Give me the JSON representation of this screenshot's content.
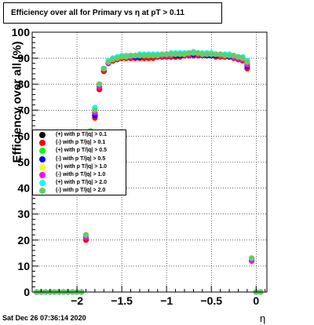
{
  "title": "Efficiency over all for Primary vs   η at pT > 0.11",
  "timestamp": "Sat Dec 26 07:36:14 2020",
  "chart_data": {
    "type": "scatter",
    "title": "Efficiency over all for Primary vs   η at pT > 0.11",
    "xlabel": "η",
    "ylabel": "Efficiency over all (%)",
    "xlim": [
      -2.5,
      0.12
    ],
    "ylim": [
      0,
      100
    ],
    "x_ticks": [
      -2,
      -1.5,
      -1,
      -0.5,
      0
    ],
    "x_tick_labels": [
      "−2",
      "−1.5",
      "−1",
      "−0.5",
      "0"
    ],
    "y_ticks": [
      0,
      10,
      20,
      30,
      40,
      50,
      60,
      70,
      80,
      90,
      100
    ],
    "y_tick_labels": [
      "0",
      "10",
      "20",
      "30",
      "40",
      "50",
      "60",
      "70",
      "80",
      "90",
      "100"
    ],
    "grid": true,
    "legend_position": "left-middle",
    "x": [
      -2.45,
      -2.4,
      -2.35,
      -2.3,
      -2.25,
      -2.2,
      -2.15,
      -2.1,
      -2.05,
      -2.0,
      -1.95,
      -1.9,
      -1.85,
      -1.8,
      -1.75,
      -1.7,
      -1.65,
      -1.6,
      -1.55,
      -1.5,
      -1.45,
      -1.4,
      -1.35,
      -1.3,
      -1.25,
      -1.2,
      -1.15,
      -1.1,
      -1.05,
      -1.0,
      -0.95,
      -0.9,
      -0.85,
      -0.8,
      -0.75,
      -0.7,
      -0.65,
      -0.6,
      -0.55,
      -0.5,
      -0.45,
      -0.4,
      -0.35,
      -0.3,
      -0.25,
      -0.2,
      -0.15,
      -0.1,
      -0.05,
      0.0,
      0.05
    ],
    "series": [
      {
        "name": "(+) with p T/|q| > 0.1",
        "color": "#000000",
        "values": [
          0,
          0,
          0,
          0,
          0,
          0,
          0,
          0,
          0,
          0,
          0,
          21,
          62,
          68,
          78,
          85,
          88,
          89,
          89.5,
          90,
          90,
          90,
          90,
          90,
          90,
          90,
          90.5,
          90.5,
          90.5,
          90.5,
          90.5,
          90.5,
          91,
          91,
          91,
          91,
          91,
          91,
          91,
          91,
          91,
          91,
          90.5,
          90.5,
          90.5,
          90,
          89.5,
          88,
          13,
          0,
          0
        ]
      },
      {
        "name": "(-) with p T/|q| > 0.1",
        "color": "#ff0000",
        "values": [
          0,
          0,
          0,
          0,
          0,
          0,
          0,
          0,
          0,
          0,
          0,
          20,
          61,
          67,
          78,
          85,
          88,
          89,
          89.5,
          90,
          90,
          90,
          90,
          90,
          90,
          90,
          90,
          90.5,
          90.5,
          90.5,
          90.5,
          90.5,
          90.5,
          91,
          91,
          91,
          91,
          91,
          91,
          91,
          90.5,
          90.5,
          90.5,
          90.5,
          90,
          89.5,
          89,
          86,
          12,
          0,
          0
        ]
      },
      {
        "name": "(+) with p T/|q| > 0.5",
        "color": "#00ff00",
        "values": [
          0,
          0,
          0,
          0,
          0,
          0,
          0,
          0,
          0,
          0,
          0,
          21,
          62,
          69,
          79,
          86,
          88,
          89.5,
          90,
          90.5,
          90.5,
          90.5,
          90.5,
          91,
          91,
          91,
          91,
          91,
          91,
          91,
          91,
          91,
          91.5,
          91.5,
          91.5,
          91.5,
          91.5,
          91.5,
          91.5,
          91.5,
          91.5,
          91,
          91,
          91,
          90.5,
          90.5,
          90,
          88,
          13,
          0,
          0
        ]
      },
      {
        "name": "(-) with p T/|q| > 0.5",
        "color": "#0000ff",
        "values": [
          0,
          0,
          0,
          0,
          0,
          0,
          0,
          0,
          0,
          0,
          0,
          21,
          61,
          68,
          79,
          86,
          88,
          89.5,
          90,
          90.5,
          90.5,
          90.5,
          90.5,
          90.5,
          91,
          91,
          91,
          91,
          91,
          91,
          91,
          91,
          91,
          91.5,
          91.5,
          91.5,
          91.5,
          91.5,
          91,
          91,
          91,
          91,
          91,
          90.5,
          90.5,
          90,
          89.5,
          87,
          12,
          0,
          0
        ]
      },
      {
        "name": "(+) with p T/|q| > 1.0",
        "color": "#ffff00",
        "values": [
          0,
          0,
          0,
          0,
          0,
          0,
          0,
          0,
          0,
          0,
          0,
          22,
          62,
          70,
          80,
          86,
          88.5,
          89.5,
          90,
          90.5,
          90.5,
          91,
          91,
          91,
          91,
          91,
          91.5,
          91.5,
          91.5,
          91.5,
          91.5,
          91.5,
          91.5,
          92,
          92,
          92,
          92,
          92,
          92,
          91.5,
          91.5,
          91.5,
          91.5,
          91,
          91,
          90.5,
          90,
          88.5,
          13,
          0,
          0
        ]
      },
      {
        "name": "(-) with p T/|q| > 1.0",
        "color": "#ff00ff",
        "values": [
          0,
          0,
          0,
          0,
          0,
          0,
          0,
          0,
          0,
          0,
          0,
          21,
          61,
          69,
          79,
          86,
          88,
          89.5,
          90,
          90.5,
          90.5,
          90.5,
          91,
          91,
          91,
          91,
          91,
          91,
          91,
          91,
          91,
          91.5,
          91.5,
          91.5,
          91.5,
          92,
          91.5,
          91.5,
          91.5,
          91.5,
          91.5,
          91,
          91,
          91,
          90.5,
          90,
          89.5,
          87.5,
          12,
          0,
          0
        ]
      },
      {
        "name": "(+) with p T/|q| > 2.0",
        "color": "#00ffff",
        "values": [
          0,
          0,
          0,
          0,
          0,
          0,
          0,
          0,
          0,
          0,
          0,
          22,
          62,
          71,
          80,
          86,
          89,
          90,
          90.5,
          91,
          91,
          91,
          91,
          91.5,
          91.5,
          91.5,
          91.5,
          91.5,
          91.5,
          91.5,
          92,
          92,
          92,
          92,
          92,
          92.5,
          92,
          92,
          92,
          92,
          91.5,
          91.5,
          91.5,
          91.5,
          91,
          90.5,
          90.5,
          89,
          13,
          0,
          0
        ]
      },
      {
        "name": "(-) with p T/|q| > 2.0",
        "color": "#66cc66",
        "values": [
          0,
          0,
          0,
          0,
          0,
          0,
          0,
          0,
          0,
          0,
          0,
          22,
          62,
          70,
          80,
          86,
          88.5,
          89.5,
          90,
          90.5,
          90.5,
          91,
          91,
          91,
          91,
          91,
          91,
          91,
          91.5,
          91.5,
          91.5,
          91.5,
          91.5,
          91.5,
          92,
          92,
          92,
          91.5,
          91.5,
          91.5,
          91.5,
          91.5,
          91,
          91,
          91,
          90.5,
          90,
          88.5,
          13,
          0,
          0
        ]
      }
    ]
  }
}
